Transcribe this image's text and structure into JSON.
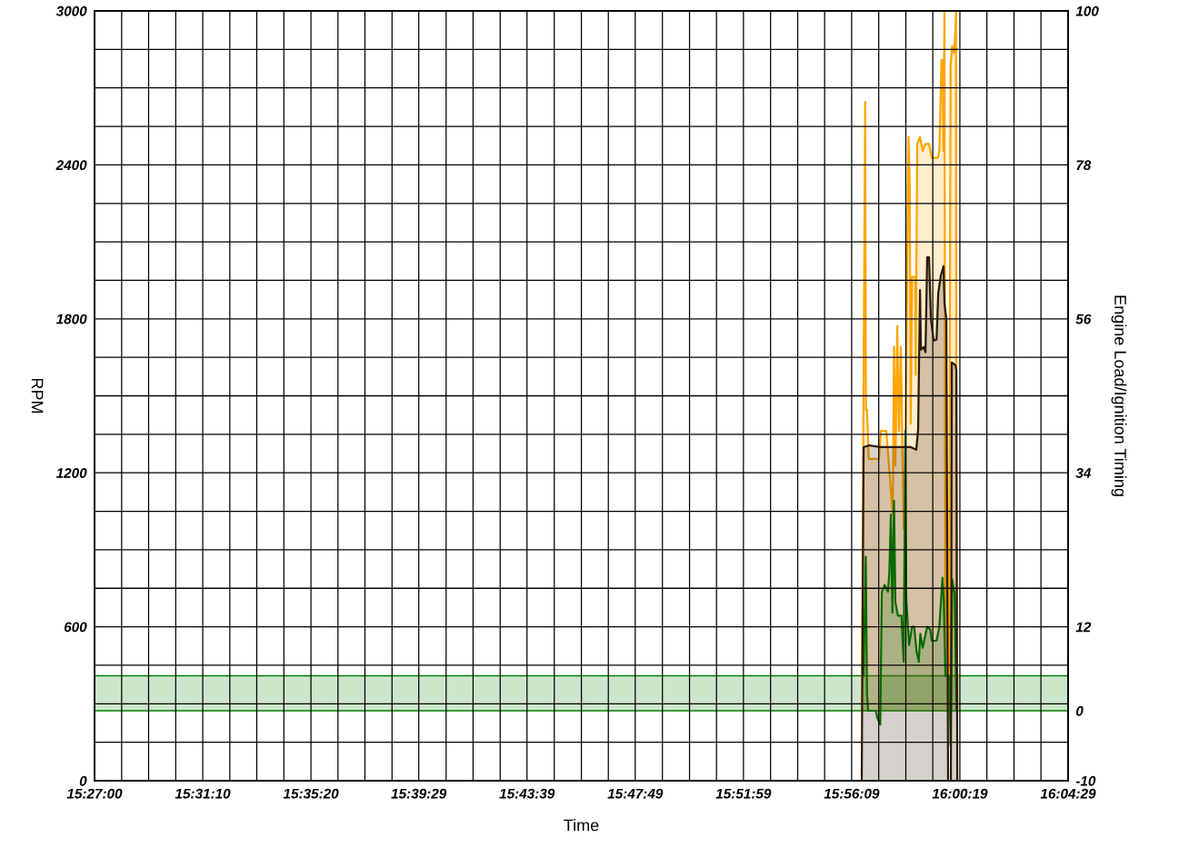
{
  "chart_data": {
    "type": "area",
    "xlabel": "Time",
    "ylabel": "RPM",
    "y2label": "Engine Load/Ignition Timing",
    "xlim": [
      15.45,
      16.074722
    ],
    "xticks": [
      {
        "value": 15.45,
        "label": "15:27:00"
      },
      {
        "value": 15.4674,
        "label": null
      },
      {
        "value": 15.4847,
        "label": null
      },
      {
        "value": 15.5021,
        "label": null
      },
      {
        "value": 15.519444,
        "label": "15:31:10"
      },
      {
        "value": 15.5368,
        "label": null
      },
      {
        "value": 15.5541,
        "label": null
      },
      {
        "value": 15.5715,
        "label": null
      },
      {
        "value": 15.588889,
        "label": "15:35:20"
      },
      {
        "value": 15.6062,
        "label": null
      },
      {
        "value": 15.6235,
        "label": null
      },
      {
        "value": 15.6409,
        "label": null
      },
      {
        "value": 15.658056,
        "label": "15:39:29"
      },
      {
        "value": 15.6756,
        "label": null
      },
      {
        "value": 15.6929,
        "label": null
      },
      {
        "value": 15.7103,
        "label": null
      },
      {
        "value": 15.7275,
        "label": "15:43:39"
      },
      {
        "value": 15.745,
        "label": null
      },
      {
        "value": 15.7624,
        "label": null
      },
      {
        "value": 15.7797,
        "label": null
      },
      {
        "value": 15.796944,
        "label": "15:47:49"
      },
      {
        "value": 15.8144,
        "label": null
      },
      {
        "value": 15.8318,
        "label": null
      },
      {
        "value": 15.8491,
        "label": null
      },
      {
        "value": 15.866389,
        "label": "15:51:59"
      },
      {
        "value": 15.8838,
        "label": null
      },
      {
        "value": 15.9012,
        "label": null
      },
      {
        "value": 15.9185,
        "label": null
      },
      {
        "value": 15.935833,
        "label": "15:56:09"
      },
      {
        "value": 15.9532,
        "label": null
      },
      {
        "value": 15.9706,
        "label": null
      },
      {
        "value": 15.9879,
        "label": null
      },
      {
        "value": 16.005278,
        "label": "16:00:19"
      },
      {
        "value": 16.0226,
        "label": null
      },
      {
        "value": 16.04,
        "label": null
      },
      {
        "value": 16.0573,
        "label": null
      },
      {
        "value": 16.074722,
        "label": "16:04:29"
      }
    ],
    "ylim": [
      0,
      3000
    ],
    "yticks": [
      0,
      {
        "value": 150,
        "label": null
      },
      {
        "value": 300,
        "label": null
      },
      {
        "value": 450,
        "label": null
      },
      600,
      {
        "value": 750,
        "label": null
      },
      {
        "value": 900,
        "label": null
      },
      {
        "value": 1050,
        "label": null
      },
      1200,
      {
        "value": 1350,
        "label": null
      },
      {
        "value": 1500,
        "label": null
      },
      {
        "value": 1650,
        "label": null
      },
      1800,
      {
        "value": 1950,
        "label": null
      },
      {
        "value": 2100,
        "label": null
      },
      {
        "value": 2250,
        "label": null
      },
      2400,
      {
        "value": 2550,
        "label": null
      },
      {
        "value": 2700,
        "label": null
      },
      {
        "value": 2850,
        "label": null
      },
      3000
    ],
    "y2lim": [
      -10,
      100
    ],
    "y2ticks": [
      -10,
      0,
      12,
      34,
      56,
      78,
      100
    ],
    "grid": true,
    "bands": [
      {
        "axis": "y2",
        "from": 0,
        "to": 5,
        "color": "#008000"
      }
    ],
    "series": [
      {
        "color": "#2b1a05",
        "x": [
          15.9423,
          15.9435,
          15.947,
          15.954,
          15.9581,
          15.9651,
          15.9738,
          15.9773,
          15.9785,
          15.9797,
          15.9803,
          15.982,
          15.9832,
          15.9843,
          15.9855,
          15.9867,
          15.9885,
          15.9903,
          15.9914,
          15.9931,
          15.9948,
          15.9954,
          15.9966,
          15.9977,
          15.9995,
          16.0001,
          16.0024,
          16.003,
          16.0036
        ],
        "values": [
          0,
          1300,
          1307,
          1300,
          1300,
          1300,
          1300,
          1290,
          1370,
          1912,
          1680,
          1690,
          1670,
          2040,
          2040,
          1800,
          1715,
          1720,
          1900,
          1970,
          2005,
          1860,
          1800,
          0,
          0,
          1630,
          1620,
          1600,
          0
        ]
      },
      {
        "axis": "y2",
        "color": "#ffa500",
        "x": [
          15.9423,
          15.9445,
          15.945,
          15.9457,
          15.9468,
          15.9534,
          15.9546,
          15.9581,
          15.9622,
          15.963,
          15.9639,
          15.9651,
          15.9662,
          15.9674,
          15.9692,
          15.9703,
          15.9723,
          15.9731,
          15.9737,
          15.9746,
          15.9766,
          15.9769,
          15.9779,
          15.9797,
          15.9814,
          15.9832,
          15.9855,
          15.9873,
          15.9912,
          15.9921,
          15.9935,
          15.9943,
          15.9947,
          15.9954,
          15.996,
          15.9983,
          15.9993,
          16.0003,
          16.0013,
          16.0019,
          16.0028,
          16.0032,
          16.0048
        ],
        "values": [
          0,
          87,
          43,
          43,
          36,
          36,
          40,
          40,
          28,
          52,
          35,
          55,
          40,
          52,
          26,
          35,
          82,
          76,
          41,
          62,
          62,
          48,
          81,
          82,
          80,
          81,
          81,
          79,
          79,
          80,
          93,
          93,
          80,
          100,
          5,
          5,
          92,
          95,
          94,
          95,
          100,
          5,
          5
        ]
      },
      {
        "axis": "y2",
        "color": "#008000",
        "x": [
          15.9435,
          15.9449,
          15.9457,
          15.9464,
          15.9513,
          15.9523,
          15.9542,
          15.9552,
          15.9571,
          15.9591,
          15.96,
          15.961,
          15.962,
          15.963,
          15.9639,
          15.9655,
          15.9678,
          15.9692,
          15.9703,
          15.9709,
          15.9727,
          15.9746,
          15.976,
          15.9775,
          15.9789,
          15.9799,
          15.9814,
          15.9843,
          15.9863,
          15.9873,
          15.9903,
          15.9921,
          15.9941,
          15.995,
          15.996,
          15.9985,
          15.9993,
          16.0003,
          16.0019,
          16.0028,
          16.0032
        ],
        "values": [
          5,
          22,
          2.5,
          0,
          0,
          -1,
          -2,
          17,
          18,
          17,
          19.7,
          28,
          14,
          30,
          15.5,
          13.6,
          13.6,
          7,
          40,
          16,
          9.4,
          12,
          12,
          8.4,
          7,
          11,
          9,
          12,
          11.6,
          10,
          10,
          12,
          19,
          15.5,
          5,
          5,
          -5,
          18.8,
          16.7,
          5,
          0
        ]
      }
    ]
  }
}
